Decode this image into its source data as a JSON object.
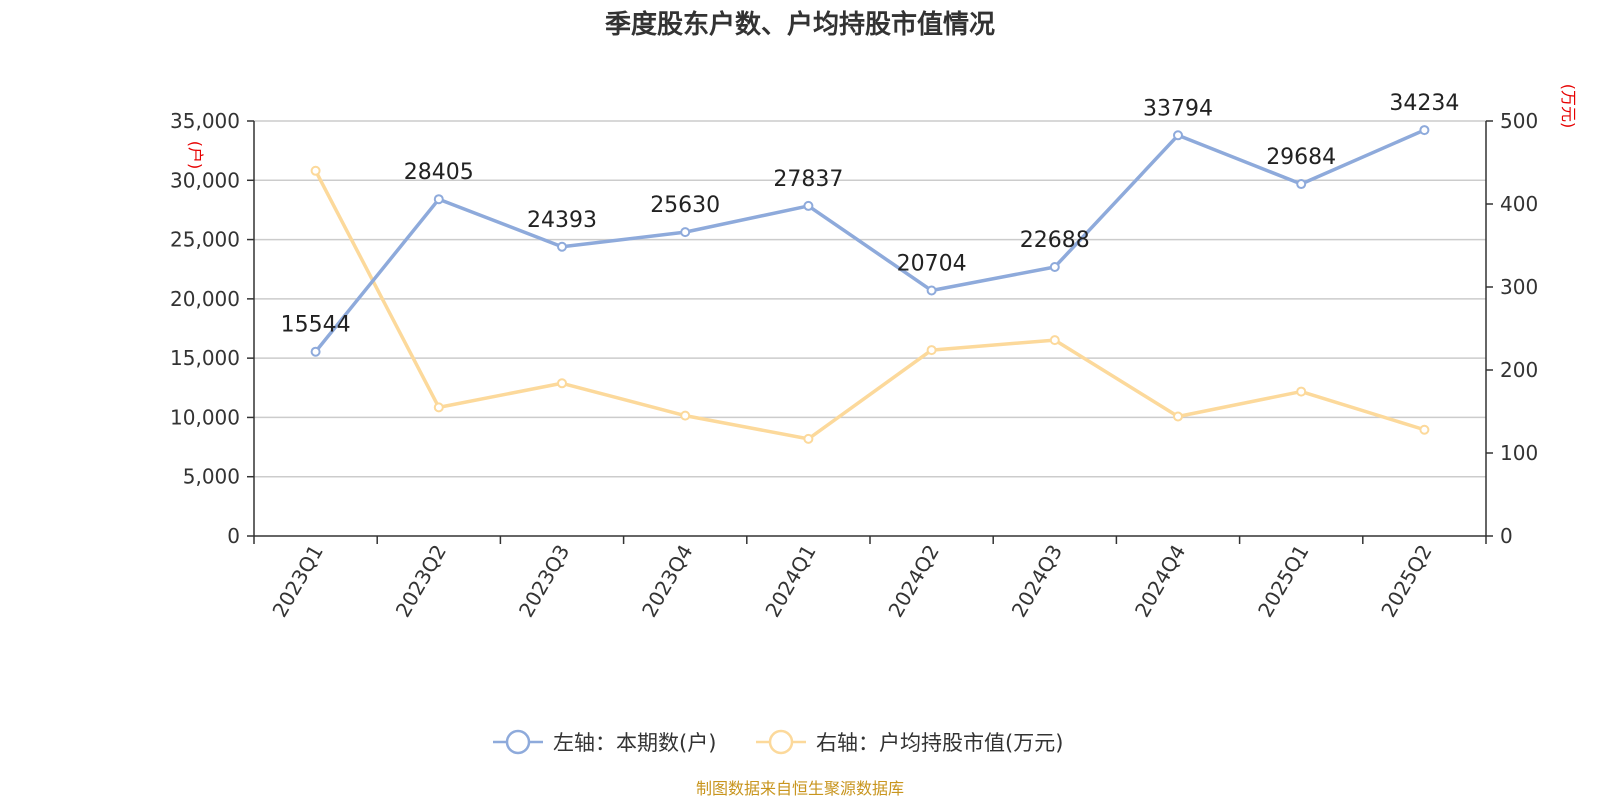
{
  "title": "季度股东户数、户均持股市值情况",
  "source": "制图数据来自恒生聚源数据库",
  "chart_data": {
    "type": "line",
    "categories": [
      "2023Q1",
      "2023Q2",
      "2023Q3",
      "2023Q4",
      "2024Q1",
      "2024Q2",
      "2024Q3",
      "2024Q4",
      "2025Q1",
      "2025Q2"
    ],
    "series": [
      {
        "name": "左轴：本期数(户)",
        "axis": "left",
        "color": "#8eaadb",
        "values": [
          15544,
          28405,
          24393,
          25630,
          27837,
          20704,
          22688,
          33794,
          29684,
          34234
        ],
        "show_labels": true
      },
      {
        "name": "右轴：户均持股市值(万元)",
        "axis": "right",
        "color": "#fcd99b",
        "values": [
          440,
          155,
          184,
          145,
          117,
          224,
          236,
          144,
          174,
          128
        ],
        "show_labels": false
      }
    ],
    "left_axis": {
      "unit": "(户)",
      "min": 0,
      "max": 35000,
      "ticks": [
        0,
        5000,
        10000,
        15000,
        20000,
        25000,
        30000,
        35000
      ],
      "tick_labels": [
        "0",
        "5,000",
        "10,000",
        "15,000",
        "20,000",
        "25,000",
        "30,000",
        "35,000"
      ]
    },
    "right_axis": {
      "unit": "(万元)",
      "min": 0,
      "max": 500,
      "ticks": [
        0,
        100,
        200,
        300,
        400,
        500
      ],
      "tick_labels": [
        "0",
        "100",
        "200",
        "300",
        "400",
        "500"
      ]
    },
    "grid": true,
    "legend_position": "bottom"
  }
}
